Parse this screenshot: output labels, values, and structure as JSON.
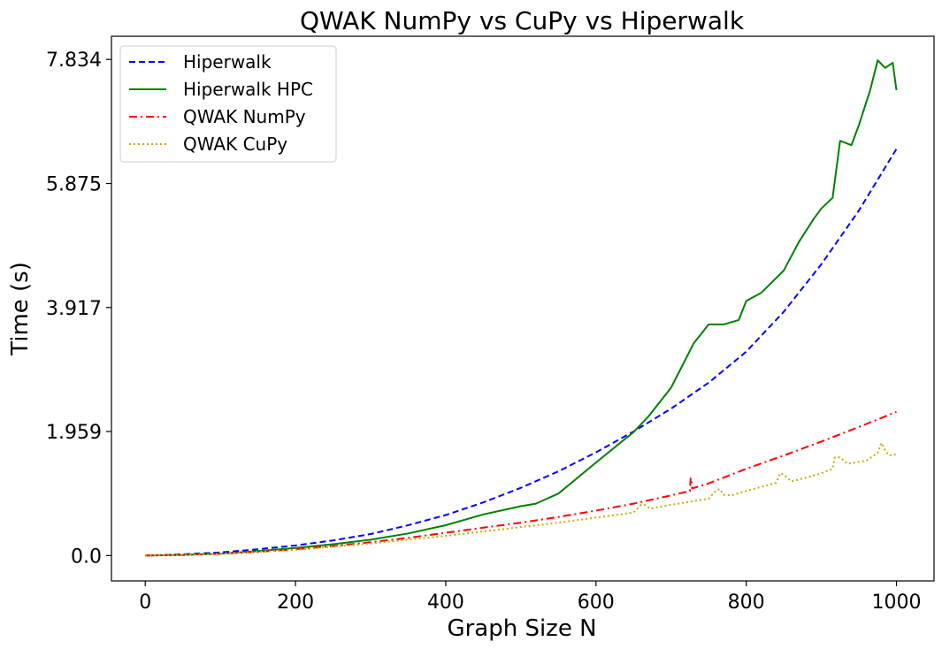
{
  "chart_data": {
    "type": "line",
    "title": "QWAK NumPy vs CuPy vs Hiperwalk",
    "xlabel": "Graph Size N",
    "ylabel": "Time (s)",
    "xlim": [
      -45,
      1050
    ],
    "ylim": [
      -0.4,
      8.2
    ],
    "xticks": [
      0,
      200,
      400,
      600,
      800,
      1000
    ],
    "xtick_labels": [
      "0",
      "200",
      "400",
      "600",
      "800",
      "1000"
    ],
    "yticks": [
      0.0,
      1.959,
      3.917,
      5.875,
      7.834
    ],
    "ytick_labels": [
      "0.0",
      "1.959",
      "3.917",
      "5.875",
      "7.834"
    ],
    "grid": false,
    "legend_position": "top-left",
    "series": [
      {
        "name": "Hiperwalk",
        "color": "#0000ff",
        "style": "dashed",
        "x": [
          0,
          50,
          100,
          150,
          200,
          250,
          300,
          350,
          400,
          450,
          500,
          550,
          600,
          650,
          700,
          750,
          800,
          850,
          900,
          950,
          1000
        ],
        "y": [
          0.0,
          0.02,
          0.05,
          0.1,
          0.16,
          0.24,
          0.34,
          0.48,
          0.64,
          0.84,
          1.07,
          1.33,
          1.63,
          1.96,
          2.32,
          2.73,
          3.22,
          3.85,
          4.6,
          5.45,
          6.42
        ]
      },
      {
        "name": "Hiperwalk HPC",
        "color": "#008000",
        "style": "solid",
        "x": [
          0,
          50,
          100,
          150,
          200,
          250,
          300,
          350,
          400,
          450,
          500,
          520,
          550,
          600,
          650,
          670,
          700,
          730,
          750,
          770,
          790,
          800,
          820,
          850,
          870,
          890,
          900,
          915,
          925,
          940,
          950,
          965,
          975,
          985,
          995,
          1000
        ],
        "y": [
          0.0,
          0.01,
          0.03,
          0.07,
          0.12,
          0.18,
          0.25,
          0.35,
          0.48,
          0.65,
          0.78,
          0.82,
          0.98,
          1.47,
          1.95,
          2.2,
          2.65,
          3.35,
          3.65,
          3.65,
          3.72,
          4.02,
          4.15,
          4.5,
          4.95,
          5.32,
          5.48,
          5.65,
          6.55,
          6.48,
          6.8,
          7.35,
          7.82,
          7.7,
          7.78,
          7.35
        ]
      },
      {
        "name": "QWAK NumPy",
        "color": "#ff0000",
        "style": "dashdot",
        "x": [
          0,
          50,
          100,
          150,
          200,
          250,
          300,
          350,
          400,
          450,
          500,
          550,
          600,
          650,
          700,
          725,
          726,
          727,
          728,
          750,
          800,
          850,
          900,
          950,
          1000
        ],
        "y": [
          0.0,
          0.01,
          0.03,
          0.06,
          0.1,
          0.15,
          0.21,
          0.28,
          0.36,
          0.44,
          0.52,
          0.61,
          0.71,
          0.82,
          0.95,
          1.02,
          1.22,
          1.22,
          1.06,
          1.14,
          1.37,
          1.58,
          1.8,
          2.03,
          2.27
        ]
      },
      {
        "name": "QWAK CuPy",
        "color": "#ccaa00",
        "style": "dotted",
        "x": [
          0,
          50,
          100,
          150,
          200,
          250,
          300,
          350,
          400,
          450,
          500,
          550,
          600,
          650,
          660,
          665,
          672,
          680,
          700,
          750,
          760,
          765,
          770,
          780,
          800,
          840,
          845,
          850,
          860,
          880,
          900,
          915,
          918,
          925,
          935,
          960,
          975,
          980,
          985,
          990,
          1000
        ],
        "y": [
          0.0,
          0.01,
          0.03,
          0.06,
          0.09,
          0.14,
          0.19,
          0.25,
          0.31,
          0.38,
          0.45,
          0.52,
          0.6,
          0.68,
          0.8,
          0.8,
          0.74,
          0.76,
          0.8,
          0.9,
          1.03,
          1.05,
          0.96,
          0.95,
          1.02,
          1.15,
          1.3,
          1.28,
          1.17,
          1.23,
          1.3,
          1.37,
          1.55,
          1.55,
          1.45,
          1.5,
          1.62,
          1.78,
          1.66,
          1.58,
          1.6
        ]
      }
    ]
  }
}
